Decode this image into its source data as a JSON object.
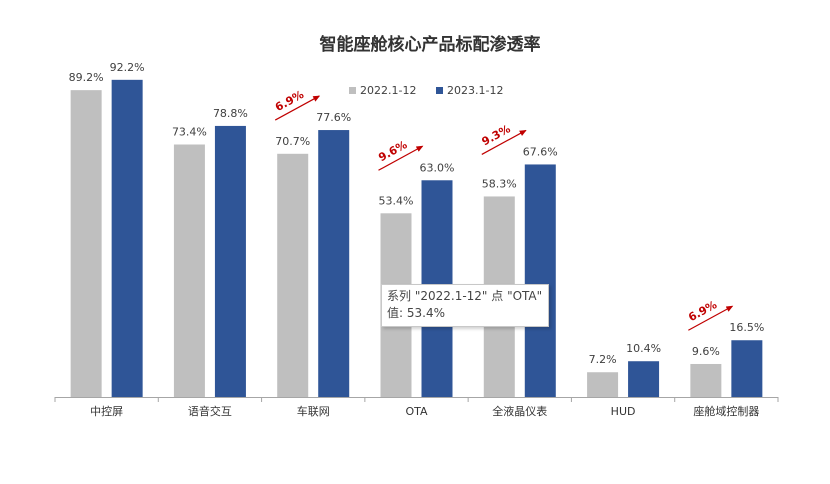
{
  "chart_data": {
    "type": "bar",
    "title": "智能座舱核心产品标配渗透率",
    "categories": [
      "中控屏",
      "语音交互",
      "车联网",
      "OTA",
      "全液晶仪表",
      "HUD",
      "座舱域控制器"
    ],
    "series": [
      {
        "name": "2022.1-12",
        "color": "#bfbfbf",
        "values": [
          89.2,
          73.4,
          70.7,
          53.4,
          58.3,
          7.2,
          9.6
        ],
        "labels": [
          "89.2%",
          "73.4%",
          "70.7%",
          "53.4%",
          "58.3%",
          "7.2%",
          "9.6%"
        ]
      },
      {
        "name": "2023.1-12",
        "color": "#2f5597",
        "values": [
          92.2,
          78.8,
          77.6,
          63.0,
          67.6,
          10.4,
          16.5
        ],
        "labels": [
          "92.2%",
          "78.8%",
          "77.6%",
          "63.0%",
          "67.6%",
          "10.4%",
          "16.5%"
        ]
      }
    ],
    "ylim": [
      0,
      100
    ],
    "grid": false,
    "legend": "top-center",
    "annotations": [
      {
        "category": "车联网",
        "text": "6.9%"
      },
      {
        "category": "OTA",
        "text": "9.6%"
      },
      {
        "category": "全液晶仪表",
        "text": "9.3%"
      },
      {
        "category": "座舱域控制器",
        "text": "6.9%"
      }
    ]
  },
  "tooltip": {
    "line1": "系列 \"2022.1-12\" 点 \"OTA\"",
    "line2": "值: 53.4%"
  }
}
